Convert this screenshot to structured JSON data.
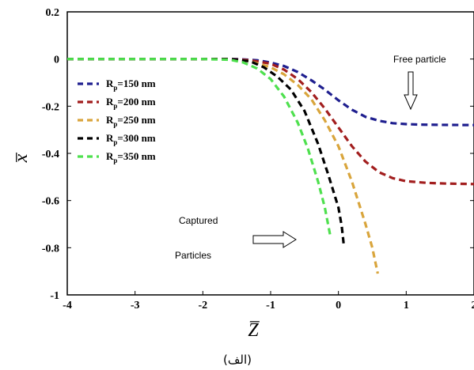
{
  "chart_data": {
    "type": "line",
    "xlabel": "Z̅",
    "ylabel": "x̅",
    "xlim": [
      -4,
      2
    ],
    "ylim": [
      -1,
      0.2
    ],
    "x_ticks": [
      "-4",
      "-3",
      "-2",
      "-1",
      "0",
      "1",
      "2"
    ],
    "y_ticks": [
      "0.2",
      "0",
      "-0.2",
      "-0.4",
      "-0.6",
      "-0.8",
      "-1"
    ],
    "grid": false,
    "legend_position": "top-left",
    "series": [
      {
        "name": "Rp=150 nm",
        "legend_main": "R",
        "legend_sub": "p",
        "legend_rest": "=150  nm",
        "color": "#1f1f8f",
        "x": [
          -4,
          -3,
          -2,
          -1.5,
          -1.2,
          -1.0,
          -0.8,
          -0.6,
          -0.4,
          -0.2,
          0.0,
          0.2,
          0.4,
          0.6,
          0.8,
          1.0,
          1.2,
          1.5,
          2.0
        ],
        "y": [
          0,
          0,
          0,
          0,
          -0.005,
          -0.015,
          -0.03,
          -0.055,
          -0.09,
          -0.13,
          -0.175,
          -0.215,
          -0.245,
          -0.262,
          -0.272,
          -0.276,
          -0.278,
          -0.279,
          -0.28
        ]
      },
      {
        "name": "Rp=200 nm",
        "legend_main": "R",
        "legend_sub": "p",
        "legend_rest": "=200  nm",
        "color": "#a21e1e",
        "x": [
          -4,
          -3,
          -2,
          -1.6,
          -1.3,
          -1.0,
          -0.8,
          -0.6,
          -0.4,
          -0.2,
          0.0,
          0.2,
          0.4,
          0.6,
          0.8,
          1.0,
          1.3,
          1.6,
          2.0
        ],
        "y": [
          0,
          0,
          0,
          0,
          -0.005,
          -0.02,
          -0.045,
          -0.085,
          -0.14,
          -0.21,
          -0.29,
          -0.37,
          -0.435,
          -0.48,
          -0.505,
          -0.518,
          -0.525,
          -0.528,
          -0.53
        ]
      },
      {
        "name": "Rp=250 nm",
        "legend_main": "R",
        "legend_sub": "p",
        "legend_rest": "=250  nm",
        "color": "#d9a53c",
        "x": [
          -4,
          -3,
          -2,
          -1.6,
          -1.3,
          -1.0,
          -0.8,
          -0.6,
          -0.4,
          -0.2,
          0.0,
          0.2,
          0.4,
          0.5,
          0.58
        ],
        "y": [
          0,
          0,
          0,
          0,
          -0.01,
          -0.035,
          -0.065,
          -0.11,
          -0.17,
          -0.26,
          -0.37,
          -0.52,
          -0.7,
          -0.8,
          -0.91
        ]
      },
      {
        "name": "Rp=300 nm",
        "legend_main": "R",
        "legend_sub": "p",
        "legend_rest": "=300  nm",
        "color": "#000000",
        "x": [
          -4,
          -3,
          -2,
          -1.6,
          -1.3,
          -1.1,
          -0.9,
          -0.7,
          -0.5,
          -0.3,
          -0.15,
          0.0,
          0.05,
          0.08
        ],
        "y": [
          0,
          0,
          0,
          0,
          -0.01,
          -0.035,
          -0.075,
          -0.13,
          -0.22,
          -0.36,
          -0.49,
          -0.63,
          -0.71,
          -0.79
        ]
      },
      {
        "name": "Rp=350 nm",
        "legend_main": "R",
        "legend_sub": "p",
        "legend_rest": "=350  nm",
        "color": "#4ee04e",
        "x": [
          -4,
          -3,
          -2,
          -1.6,
          -1.4,
          -1.2,
          -1.0,
          -0.8,
          -0.6,
          -0.45,
          -0.3,
          -0.2,
          -0.12
        ],
        "y": [
          0,
          0,
          0,
          -0.003,
          -0.015,
          -0.04,
          -0.085,
          -0.16,
          -0.27,
          -0.38,
          -0.52,
          -0.63,
          -0.75
        ]
      }
    ],
    "annotations": {
      "free_particle": "Free particle",
      "captured_line1": "Captured",
      "captured_line2": "Particles"
    },
    "caption": "(الف)"
  }
}
